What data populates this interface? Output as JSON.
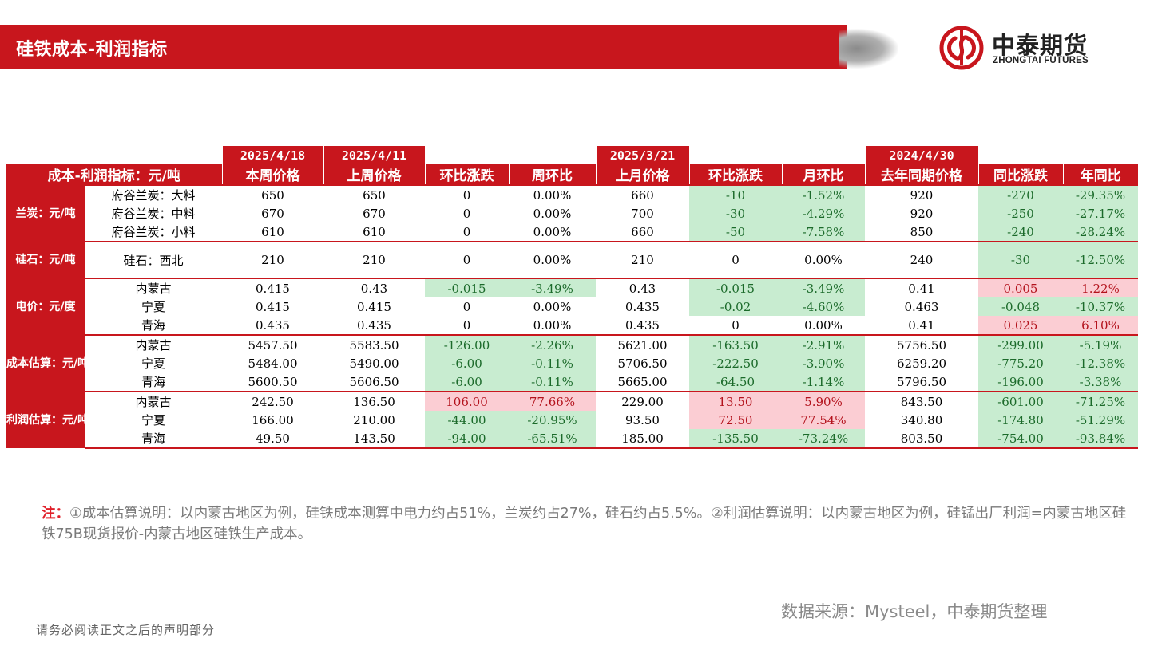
{
  "header": {
    "title": "硅铁成本-利润指标",
    "logo_cn": "中泰期货",
    "logo_en": "ZHONGTAI FUTURES"
  },
  "table": {
    "date_labels": [
      "2025/4/18",
      "2025/4/11",
      "2025/3/21",
      "2024/4/30"
    ],
    "columns": [
      "成本-利润指标：元/吨",
      "本周价格",
      "上周价格",
      "环比涨跌",
      "周环比",
      "上月价格",
      "环比涨跌",
      "月环比",
      "去年同期价格",
      "同比涨跌",
      "年同比"
    ],
    "groups": [
      {
        "category": "兰炭：元/吨",
        "rows": [
          {
            "name": "府谷兰炭：大料",
            "cells": [
              "650",
              "650",
              "0",
              "0.00%",
              "660",
              "-10",
              "-1.52%",
              "920",
              "-270",
              "-29.35%"
            ]
          },
          {
            "name": "府谷兰炭：中料",
            "cells": [
              "670",
              "670",
              "0",
              "0.00%",
              "700",
              "-30",
              "-4.29%",
              "920",
              "-250",
              "-27.17%"
            ]
          },
          {
            "name": "府谷兰炭：小料",
            "cells": [
              "610",
              "610",
              "0",
              "0.00%",
              "660",
              "-50",
              "-7.58%",
              "850",
              "-240",
              "-28.24%"
            ]
          }
        ]
      },
      {
        "category": "硅石：元/吨",
        "rows": [
          {
            "name": "硅石：西北",
            "cells": [
              "210",
              "210",
              "0",
              "0.00%",
              "210",
              "0",
              "0.00%",
              "240",
              "-30",
              "-12.50%"
            ]
          }
        ]
      },
      {
        "category": "电价：元/度",
        "rows": [
          {
            "name": "内蒙古",
            "cells": [
              "0.415",
              "0.43",
              "-0.015",
              "-3.49%",
              "0.43",
              "-0.015",
              "-3.49%",
              "0.41",
              "0.005",
              "1.22%"
            ]
          },
          {
            "name": "宁夏",
            "cells": [
              "0.415",
              "0.415",
              "0",
              "0.00%",
              "0.435",
              "-0.02",
              "-4.60%",
              "0.463",
              "-0.048",
              "-10.37%"
            ]
          },
          {
            "name": "青海",
            "cells": [
              "0.435",
              "0.435",
              "0",
              "0.00%",
              "0.435",
              "0",
              "0.00%",
              "0.41",
              "0.025",
              "6.10%"
            ]
          }
        ]
      },
      {
        "category": "成本估算：元/吨",
        "rows": [
          {
            "name": "内蒙古",
            "cells": [
              "5457.50",
              "5583.50",
              "-126.00",
              "-2.26%",
              "5621.00",
              "-163.50",
              "-2.91%",
              "5756.50",
              "-299.00",
              "-5.19%"
            ]
          },
          {
            "name": "宁夏",
            "cells": [
              "5484.00",
              "5490.00",
              "-6.00",
              "-0.11%",
              "5706.50",
              "-222.50",
              "-3.90%",
              "6259.20",
              "-775.20",
              "-12.38%"
            ]
          },
          {
            "name": "青海",
            "cells": [
              "5600.50",
              "5606.50",
              "-6.00",
              "-0.11%",
              "5665.00",
              "-64.50",
              "-1.14%",
              "5796.50",
              "-196.00",
              "-3.38%"
            ]
          }
        ]
      },
      {
        "category": "利润估算：元/吨",
        "rows": [
          {
            "name": "内蒙古",
            "cells": [
              "242.50",
              "136.50",
              "106.00",
              "77.66%",
              "229.00",
              "13.50",
              "5.90%",
              "843.50",
              "-601.00",
              "-71.25%"
            ]
          },
          {
            "name": "宁夏",
            "cells": [
              "166.00",
              "210.00",
              "-44.00",
              "-20.95%",
              "93.50",
              "72.50",
              "77.54%",
              "340.80",
              "-174.80",
              "-51.29%"
            ]
          },
          {
            "name": "青海",
            "cells": [
              "49.50",
              "143.50",
              "-94.00",
              "-65.51%",
              "185.00",
              "-135.50",
              "-73.24%",
              "803.50",
              "-754.00",
              "-93.84%"
            ]
          }
        ]
      }
    ]
  },
  "note": {
    "label": "注：",
    "text": "①成本估算说明：以内蒙古地区为例，硅铁成本测算中电力约占51%，兰炭约占27%，硅石约占5.5%。②利润估算说明：以内蒙古地区为例，硅锰出厂利润=内蒙古地区硅铁75B现货报价-内蒙古地区硅铁生产成本。"
  },
  "source": "数据来源：Mysteel，中泰期货整理",
  "footer": "请务必阅读正文之后的声明部分",
  "colors": {
    "brand_red": "#c8161d",
    "up_fill": "#fbcdd3",
    "down_fill": "#c8ecd0"
  }
}
